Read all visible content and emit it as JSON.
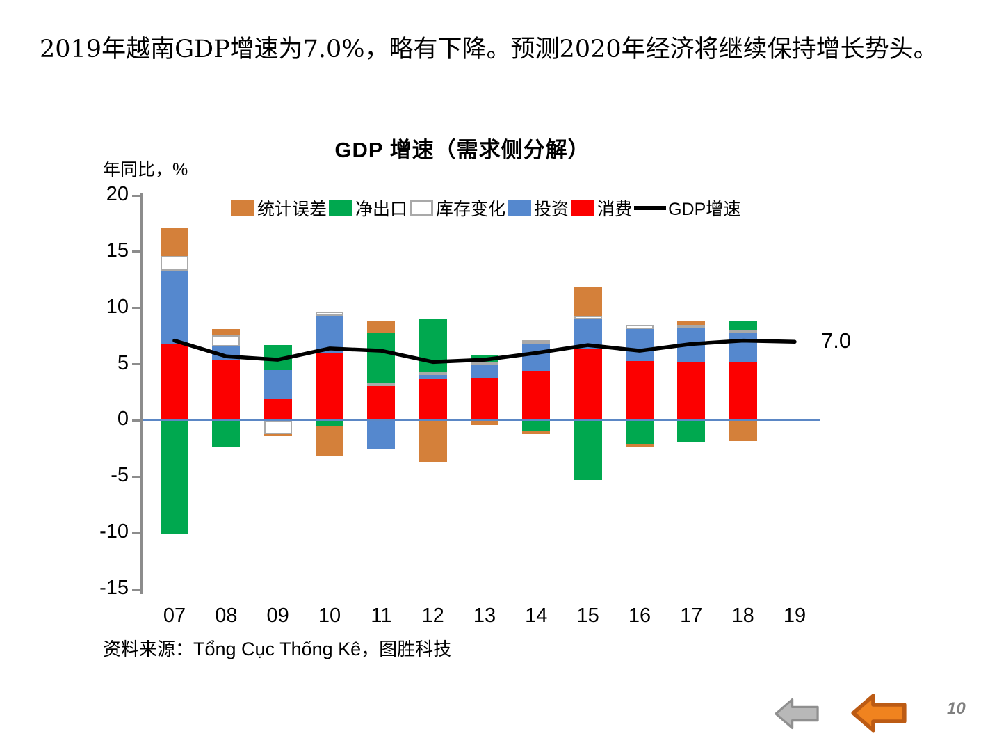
{
  "slide": {
    "heading": "2019年越南GDP增速为7.0%，略有下降。预测2020年经济将继续保持增长势头。",
    "source_prefix": "资料来源：",
    "source_name": "Tổng Cục Thống Kê",
    "source_suffix": "，图胜科技"
  },
  "chart_data": {
    "type": "bar",
    "subtype": "stacked-bar-with-line",
    "title": "GDP 增速（需求侧分解）",
    "y_axis_label": "年同比，%",
    "ylim": [
      -15,
      20
    ],
    "y_ticks": [
      20,
      15,
      10,
      5,
      0,
      -5,
      -10,
      -15
    ],
    "grid": false,
    "legend_position": "top",
    "categories": [
      "07",
      "08",
      "09",
      "10",
      "11",
      "12",
      "13",
      "14",
      "15",
      "16",
      "17",
      "18",
      "19"
    ],
    "series": [
      {
        "key": "consumption",
        "name": "消费",
        "color": "#FC0000",
        "values": [
          6.8,
          5.4,
          1.9,
          6.0,
          3.2,
          3.7,
          3.8,
          4.4,
          6.4,
          5.3,
          5.25,
          5.25,
          null
        ]
      },
      {
        "key": "investment",
        "name": "投资",
        "color": "#5588CE",
        "values": [
          6.5,
          1.2,
          2.6,
          3.3,
          -2.5,
          0.4,
          1.2,
          2.4,
          2.6,
          2.8,
          3.0,
          2.6,
          null
        ]
      },
      {
        "key": "inventory-change",
        "name": "库存变化",
        "color": "#FFFFFF",
        "border": "#A9A9A9",
        "values": [
          1.3,
          1.0,
          -1.2,
          0.4,
          0.1,
          0.2,
          0.25,
          0.35,
          0.3,
          0.4,
          0.25,
          0.2,
          null
        ]
      },
      {
        "key": "net-exports",
        "name": "净出口",
        "color": "#00A84F",
        "values": [
          -10.1,
          -2.3,
          2.2,
          -0.5,
          4.5,
          4.7,
          0.55,
          -0.95,
          -5.3,
          -2.1,
          -1.9,
          0.8,
          null
        ]
      },
      {
        "key": "statistical-discrepancy",
        "name": "统计误差",
        "color": "#D4803A",
        "values": [
          2.5,
          0.5,
          -0.2,
          -2.7,
          1.1,
          -3.7,
          -0.4,
          -0.25,
          2.6,
          -0.25,
          0.4,
          -1.8,
          null
        ]
      }
    ],
    "line_series": {
      "key": "gdp-growth",
      "name": "GDP增速",
      "color": "#000000",
      "values": [
        7.1,
        5.7,
        5.4,
        6.4,
        6.2,
        5.2,
        5.4,
        6.0,
        6.7,
        6.2,
        6.8,
        7.1,
        7.0
      ]
    },
    "end_label": "7.0",
    "legend_items": [
      {
        "key": "statistical-discrepancy",
        "label": "统计误差",
        "marker": "rect",
        "color": "#D4803A"
      },
      {
        "key": "net-exports",
        "label": "净出口",
        "marker": "rect",
        "color": "#00A84F"
      },
      {
        "key": "inventory-change",
        "label": "库存变化",
        "marker": "rect-outline",
        "color": "#FFFFFF",
        "border": "#A9A9A9"
      },
      {
        "key": "investment",
        "label": "投资",
        "marker": "rect",
        "color": "#5588CE"
      },
      {
        "key": "consumption",
        "label": "消费",
        "marker": "rect",
        "color": "#FC0000"
      },
      {
        "key": "gdp-growth",
        "label": "GDP增速",
        "marker": "line",
        "color": "#000000"
      }
    ],
    "axis_color": "#8C8C8C",
    "zero_line_color": "#5B87C5"
  },
  "footer": {
    "page_number": "10",
    "nav_arrows": [
      {
        "key": "back-gray",
        "fill": "#B8B8B8",
        "stroke": "#8F8F8F"
      },
      {
        "key": "back-orange",
        "fill": "#F0831F",
        "stroke": "#BC5B14"
      }
    ]
  }
}
